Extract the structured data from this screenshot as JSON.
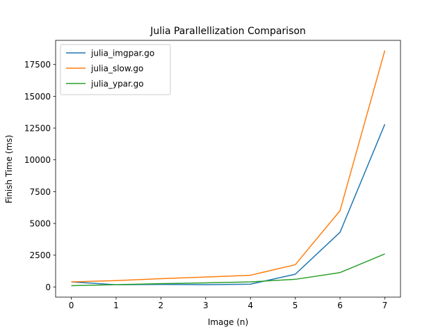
{
  "chart_data": {
    "type": "line",
    "title": "Julia Parallellization Comparison",
    "xlabel": "Image (n)",
    "ylabel": "Finish Time (ms)",
    "x": [
      0,
      1,
      2,
      3,
      4,
      5,
      6,
      7
    ],
    "x_ticks": [
      0,
      1,
      2,
      3,
      4,
      5,
      6,
      7
    ],
    "y_ticks": [
      0,
      2500,
      5000,
      7500,
      10000,
      12500,
      15000,
      17500
    ],
    "xlim": [
      -0.35,
      7.35
    ],
    "ylim": [
      -800,
      19400
    ],
    "grid": false,
    "legend_position": "top-left",
    "series": [
      {
        "name": "julia_imgpar.go",
        "color": "#1f77b4",
        "values": [
          400,
          170,
          200,
          180,
          220,
          1000,
          4300,
          12800
        ]
      },
      {
        "name": "julia_slow.go",
        "color": "#ff7f0e",
        "values": [
          400,
          500,
          650,
          780,
          920,
          1750,
          6000,
          18600
        ]
      },
      {
        "name": "julia_ypar.go",
        "color": "#2ca02c",
        "values": [
          100,
          180,
          260,
          320,
          400,
          600,
          1130,
          2600
        ]
      }
    ]
  }
}
